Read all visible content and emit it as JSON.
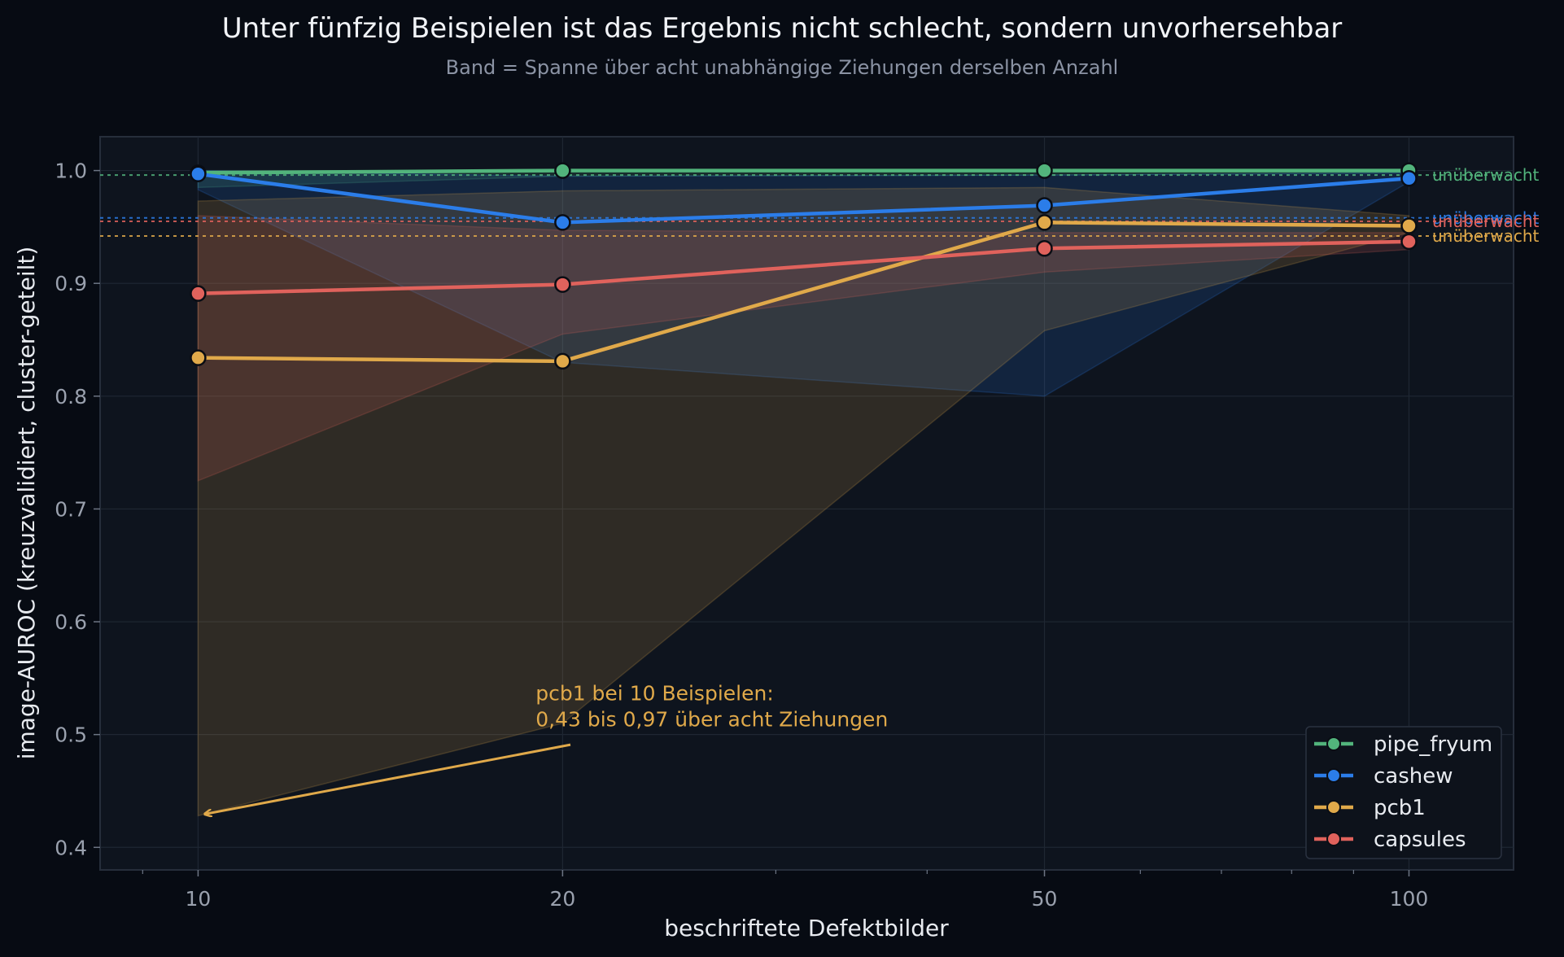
{
  "chart_data": {
    "type": "line",
    "title": "Unter fünfzig Beispielen ist das Ergebnis nicht schlecht, sondern unvorhersehbar",
    "subtitle": "Band = Spanne über acht unabhängige Ziehungen derselben Anzahl",
    "xlabel": "beschriftete Defektbilder",
    "ylabel": "image-AUROC (kreuzvalidiert, cluster-geteilt)",
    "x_scale": "log",
    "xlim": [
      8.3,
      122
    ],
    "ylim": [
      0.38,
      1.03
    ],
    "x_ticks": [
      {
        "value": 10,
        "label": "10"
      },
      {
        "value": 20,
        "label": "20"
      },
      {
        "value": 50,
        "label": "50"
      },
      {
        "value": 100,
        "label": "100"
      }
    ],
    "y_ticks": [
      {
        "value": 0.4,
        "label": "0.4"
      },
      {
        "value": 0.5,
        "label": "0.5"
      },
      {
        "value": 0.6,
        "label": "0.6"
      },
      {
        "value": 0.7,
        "label": "0.7"
      },
      {
        "value": 0.8,
        "label": "0.8"
      },
      {
        "value": 0.9,
        "label": "0.9"
      },
      {
        "value": 1.0,
        "label": "1.0"
      }
    ],
    "grid": true,
    "legend_position": "bottom-right",
    "x": [
      10,
      20,
      50,
      100
    ],
    "series": [
      {
        "name": "pipe_fryum",
        "color": "#52b47c",
        "values": [
          0.998,
          1.0,
          1.0,
          1.0
        ],
        "band_low": [
          0.985,
          0.995,
          0.996,
          0.998
        ],
        "band_high": [
          1.0,
          1.0,
          1.0,
          1.0
        ],
        "unsupervised": 0.996,
        "unsupervised_label": "unüberwacht"
      },
      {
        "name": "cashew",
        "color": "#2b7de9",
        "values": [
          0.997,
          0.954,
          0.969,
          0.993
        ],
        "band_low": [
          0.983,
          0.83,
          0.8,
          0.99
        ],
        "band_high": [
          1.0,
          0.995,
          0.996,
          0.998
        ],
        "unsupervised": 0.958,
        "unsupervised_label": "unüberwacht"
      },
      {
        "name": "pcb1",
        "color": "#e0a94a",
        "values": [
          0.834,
          0.831,
          0.954,
          0.951
        ],
        "band_low": [
          0.428,
          0.51,
          0.858,
          0.945
        ],
        "band_high": [
          0.973,
          0.982,
          0.985,
          0.96
        ],
        "unsupervised": 0.942,
        "unsupervised_label": "unüberwacht"
      },
      {
        "name": "capsules",
        "color": "#e0625c",
        "values": [
          0.891,
          0.899,
          0.931,
          0.937
        ],
        "band_low": [
          0.725,
          0.855,
          0.91,
          0.93
        ],
        "band_high": [
          0.96,
          0.947,
          0.945,
          0.945
        ],
        "unsupervised": 0.955,
        "unsupervised_label": "unüberwacht"
      }
    ],
    "annotation": {
      "text_lines": [
        "pcb1 bei 10 Beispielen:",
        "0,43 bis 0,97 über acht Ziehungen"
      ],
      "target": {
        "x": 10,
        "y": 0.428
      },
      "text_anchor": {
        "x": 19.0,
        "y": 0.506
      },
      "arrow_tail": {
        "x": 20.3,
        "y": 0.491
      },
      "color": "#e0a94a"
    }
  }
}
